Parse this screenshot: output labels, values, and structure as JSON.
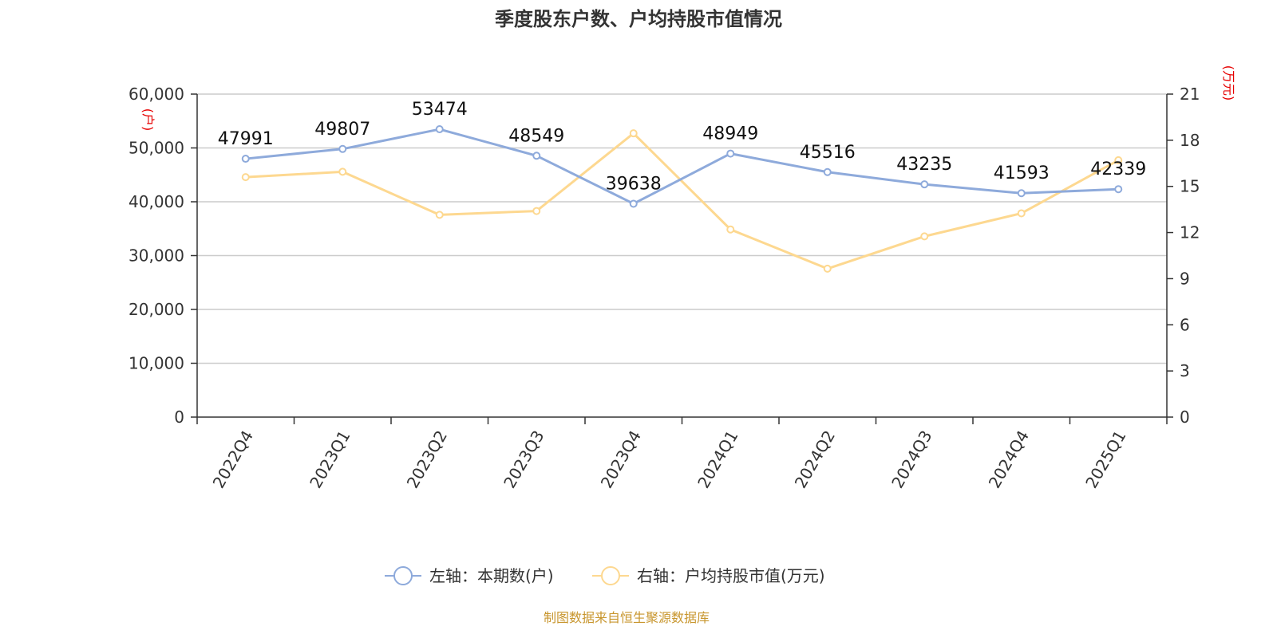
{
  "chart_data": {
    "type": "line",
    "title": "季度股东户数、户均持股市值情况",
    "categories": [
      "2022Q4",
      "2023Q1",
      "2023Q2",
      "2023Q3",
      "2023Q4",
      "2024Q1",
      "2024Q2",
      "2024Q3",
      "2024Q4",
      "2025Q1"
    ],
    "left_axis": {
      "unit": "(户)",
      "ylim": [
        0,
        60000
      ],
      "ticks": [
        "0",
        "10,000",
        "20,000",
        "30,000",
        "40,000",
        "50,000",
        "60,000"
      ]
    },
    "right_axis": {
      "unit": "(万元)",
      "ylim": [
        0,
        21
      ],
      "ticks": [
        "0",
        "3",
        "6",
        "9",
        "12",
        "15",
        "18",
        "21"
      ]
    },
    "series": [
      {
        "name": "左轴：本期数(户)",
        "axis": "left",
        "color": "#8eaadb",
        "values": [
          47991,
          49807,
          53474,
          48549,
          39638,
          48949,
          45516,
          43235,
          41593,
          42339
        ],
        "labels": [
          "47991",
          "49807",
          "53474",
          "48549",
          "39638",
          "48949",
          "45516",
          "43235",
          "41593",
          "42339"
        ]
      },
      {
        "name": "右轴：户均持股市值(万元)",
        "axis": "right",
        "color": "#fdd890",
        "values": [
          15.6,
          15.95,
          13.15,
          13.4,
          18.45,
          12.2,
          9.65,
          11.75,
          13.25,
          16.7
        ]
      }
    ],
    "grid": true,
    "legend_position": "bottom-center",
    "source": "制图数据来自恒生聚源数据库"
  }
}
